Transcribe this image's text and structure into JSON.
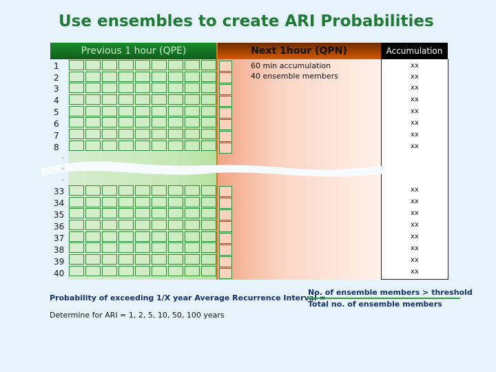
{
  "title": "Use ensembles to create ARI Probabilities",
  "columns": {
    "previous": "Previous 1 hour (QPE)",
    "next": "Next 1hour (QPN)",
    "accumulation": "Accumulation"
  },
  "next_notes": [
    "60 min accumulation",
    "40 ensemble members"
  ],
  "rows_top": [
    "1",
    "2",
    "3",
    "4",
    "5",
    "6",
    "7",
    "8"
  ],
  "dots": [
    ".",
    ".",
    "."
  ],
  "rows_bottom": [
    "33",
    "34",
    "35",
    "36",
    "37",
    "38",
    "39",
    "40"
  ],
  "acc_top": [
    "xx",
    "xx",
    "xx",
    "xx",
    "xx",
    "xx",
    "xx",
    "xx"
  ],
  "acc_bottom": [
    "xx",
    "xx",
    "xx",
    "xx",
    "xx",
    "xx",
    "xx",
    "xx"
  ],
  "formula": {
    "label": "Probability of exceeding 1/X year Average Recurrence Interval =",
    "numerator": "No. of ensemble members > threshold",
    "denominator": "Total no. of ensemble members"
  },
  "ari_note": "Determine for ARI = 1, 2, 5, 10, 50, 100 years",
  "colors": {
    "title": "#1f7a34",
    "grid": "#2e8b3a",
    "formula_text": "#12316a"
  }
}
